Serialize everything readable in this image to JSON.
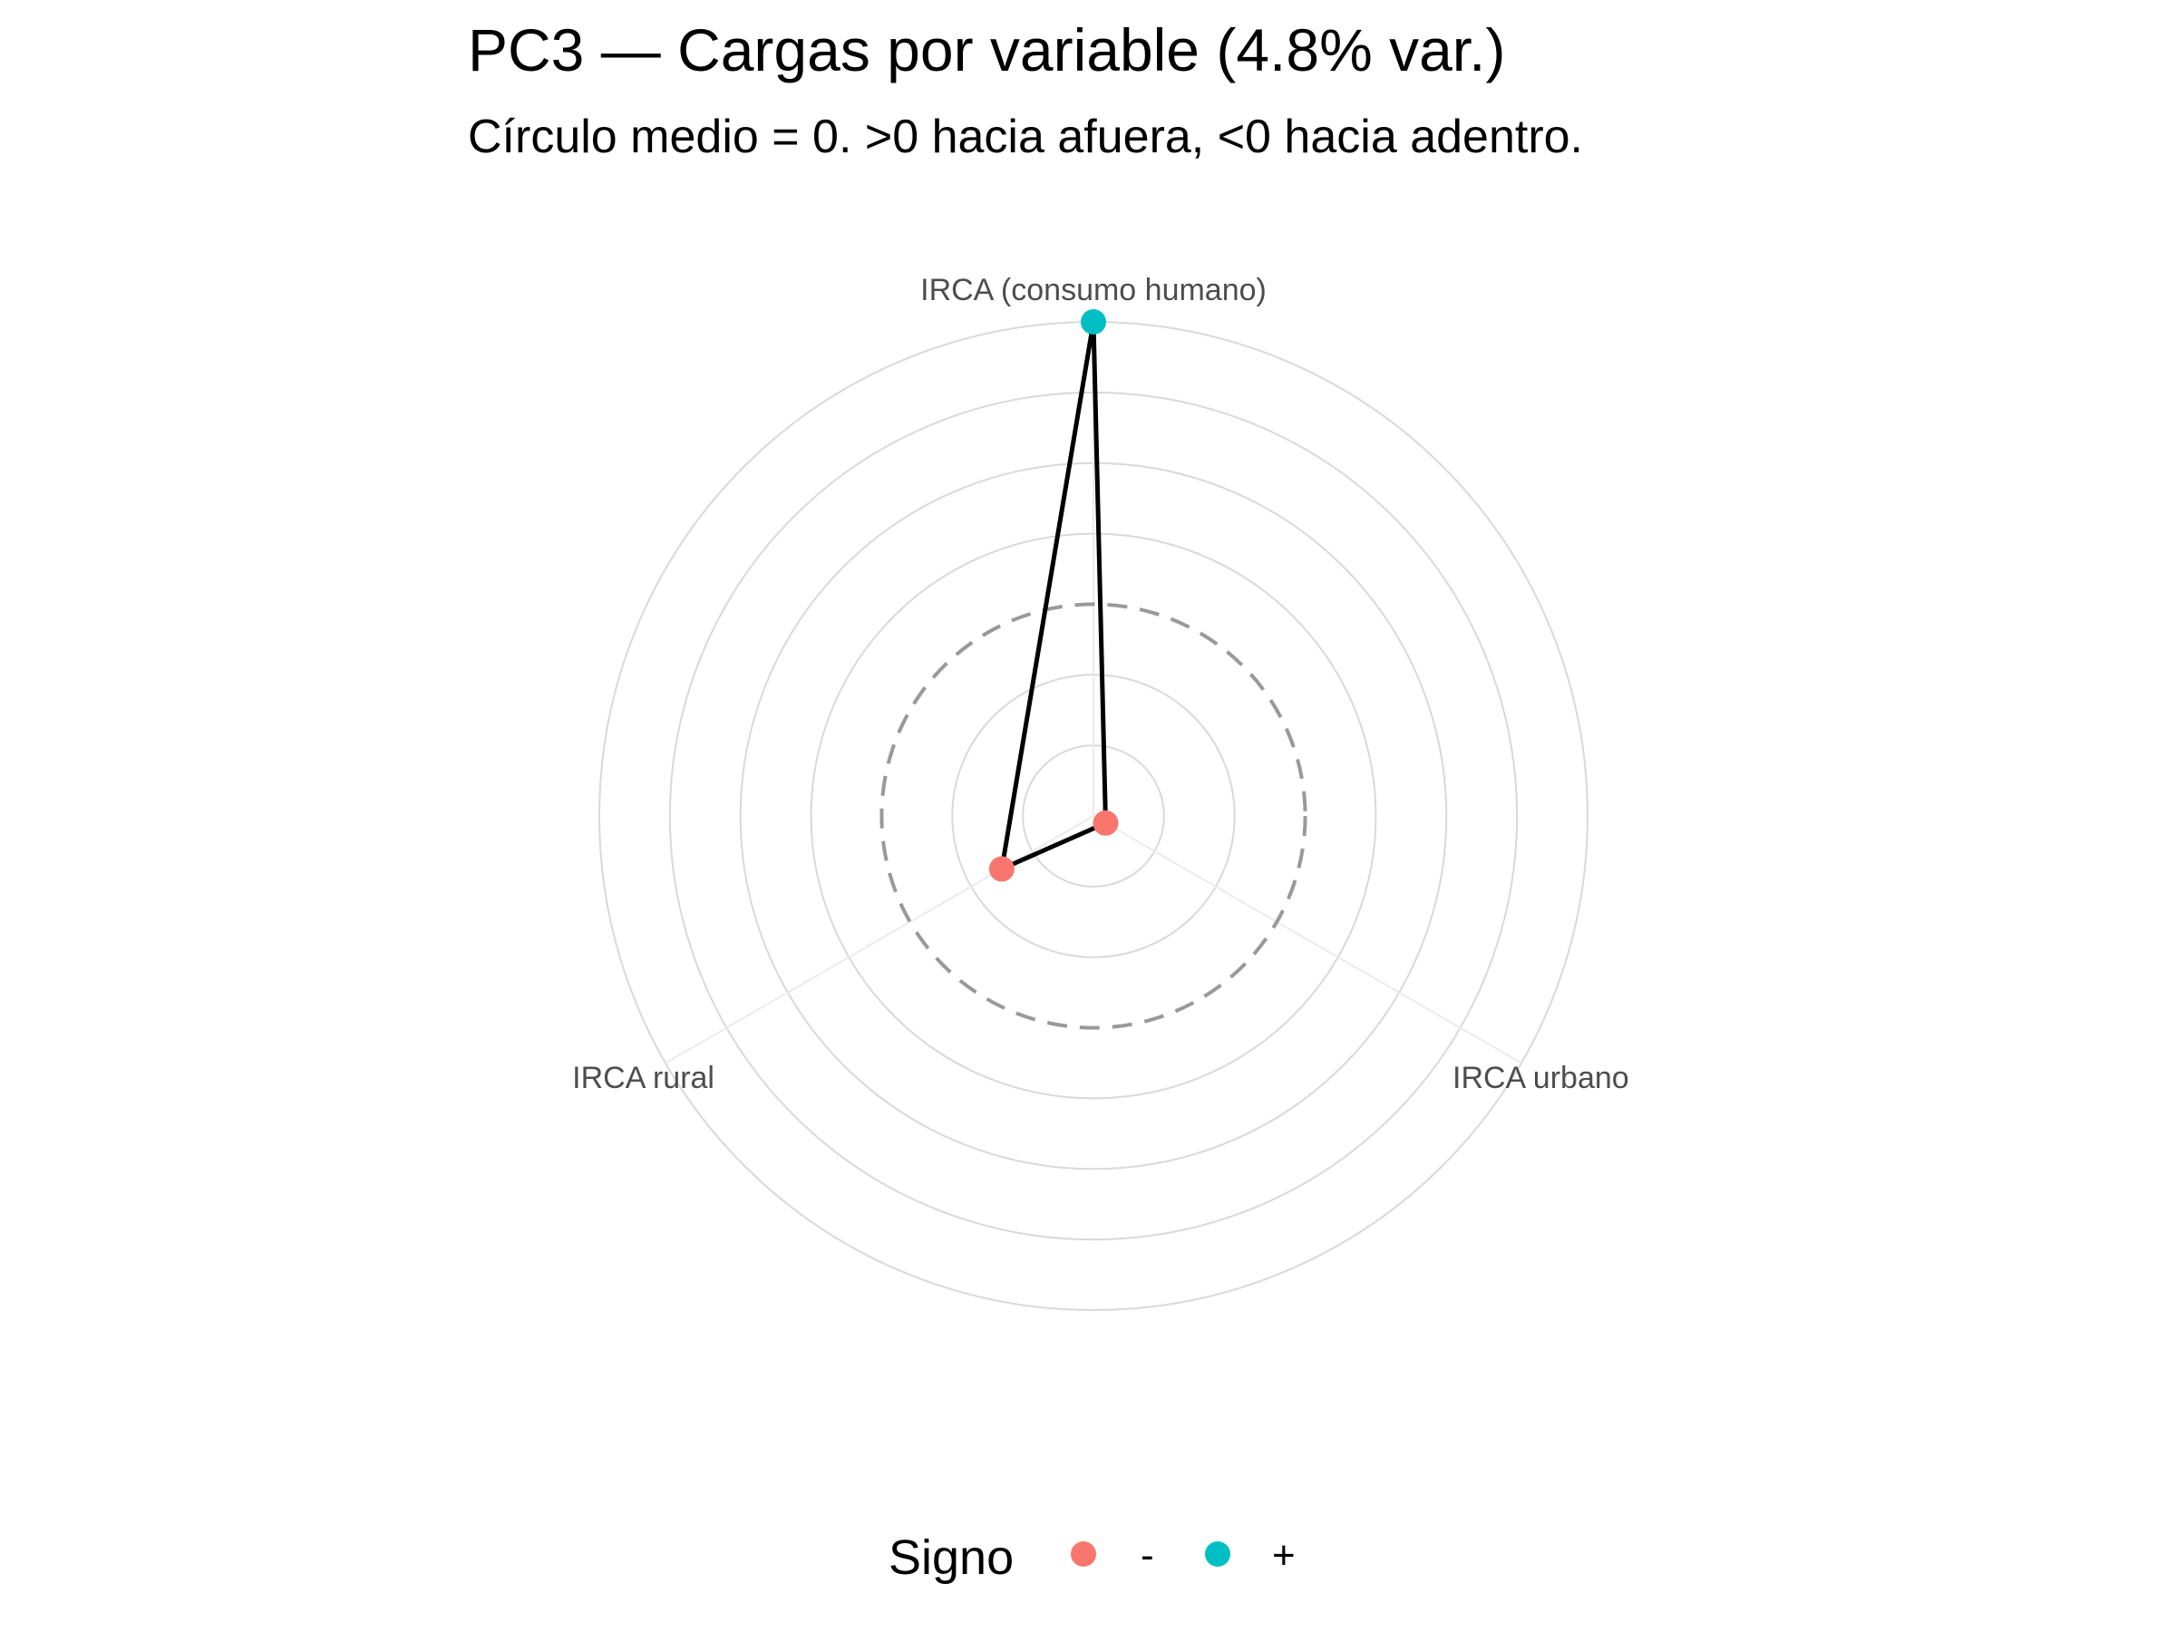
{
  "chart_data": {
    "type": "radar",
    "title": "PC3 — Cargas por variable (4.8% var.)",
    "subtitle": "Círculo medio = 0. >0 hacia afuera, <0 hacia adentro.",
    "categories": [
      "IRCA (consumo humano)",
      "IRCA urbano",
      "IRCA rural"
    ],
    "loadings": [
      0.8,
      -0.56,
      -0.3
    ],
    "signs": [
      "+",
      "-",
      "-"
    ],
    "radial_range": [
      -0.6,
      0.8
    ],
    "gridlines": [
      -0.4,
      -0.2,
      0.2,
      0.4,
      0.6,
      0.8
    ],
    "zero_line": 0,
    "grid": true,
    "legend": {
      "title": "Signo",
      "position": "bottom",
      "items": [
        {
          "label": "-",
          "color": "#F8766D"
        },
        {
          "label": "+",
          "color": "#00BFC4"
        }
      ]
    },
    "line_color": "#000000"
  }
}
